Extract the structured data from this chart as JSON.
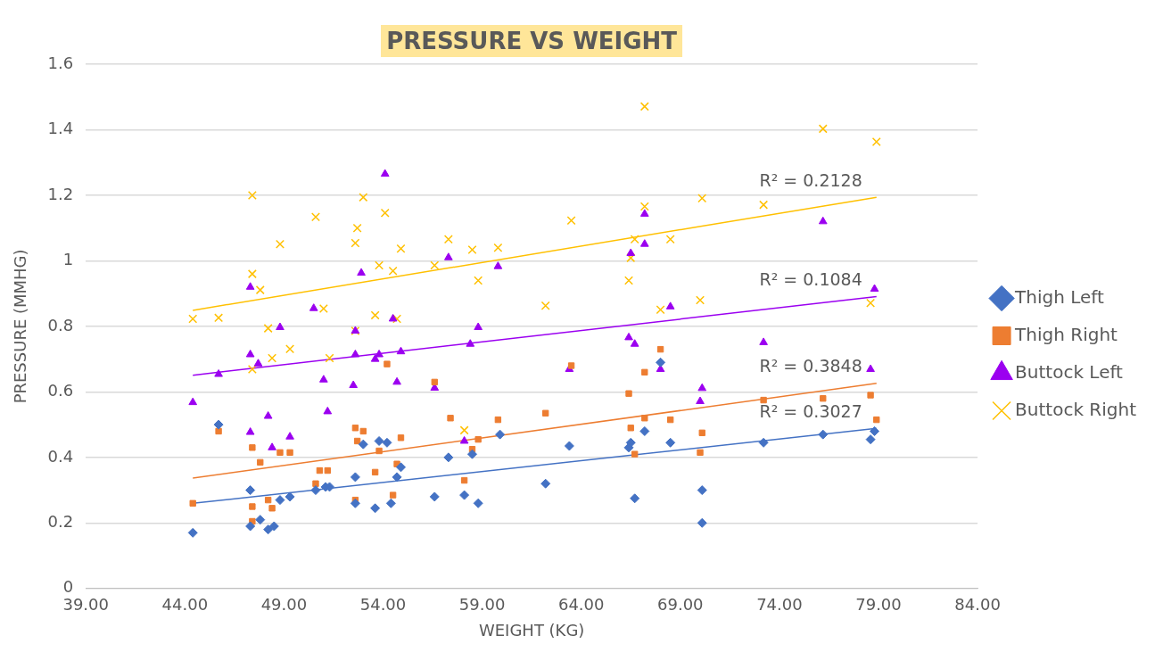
{
  "chart_data": {
    "type": "scatter",
    "title": "PRESSURE VS WEIGHT",
    "xlabel": "WEIGHT (KG)",
    "ylabel": "PRESSURE (MMHG)",
    "xlim": [
      39,
      84
    ],
    "xticks": [
      {
        "value": 39,
        "label": "39.00"
      },
      {
        "value": 44,
        "label": "44.00"
      },
      {
        "value": 49,
        "label": "49.00"
      },
      {
        "value": 54,
        "label": "54.00"
      },
      {
        "value": 59,
        "label": "59.00"
      },
      {
        "value": 64,
        "label": "64.00"
      },
      {
        "value": 69,
        "label": "69.00"
      },
      {
        "value": 74,
        "label": "74.00"
      },
      {
        "value": 79,
        "label": "79.00"
      },
      {
        "value": 84,
        "label": "84.00"
      }
    ],
    "ylim": [
      0,
      1.6
    ],
    "yticks": [
      0,
      0.2,
      0.4,
      0.6,
      0.8,
      1,
      1.2,
      1.4,
      1.6
    ],
    "grid": "y",
    "legend": "right",
    "series": [
      {
        "name": "Thigh Left",
        "color": "#4472c4",
        "marker": "diamond",
        "x": [
          44.4,
          45.7,
          47.3,
          47.3,
          47.8,
          48.2,
          48.5,
          48.8,
          49.3,
          50.6,
          51.1,
          51.3,
          52.6,
          52.6,
          53.0,
          53.6,
          53.8,
          54.2,
          54.4,
          54.7,
          54.9,
          56.6,
          57.3,
          58.1,
          58.5,
          58.8,
          59.9,
          62.2,
          63.4,
          66.4,
          66.5,
          66.7,
          67.2,
          68.0,
          68.5,
          70.1,
          70.1,
          73.2,
          76.2,
          78.6,
          78.8
        ],
        "values": [
          0.17,
          0.5,
          0.3,
          0.19,
          0.21,
          0.18,
          0.19,
          0.27,
          0.28,
          0.3,
          0.31,
          0.31,
          0.34,
          0.26,
          0.44,
          0.245,
          0.45,
          0.445,
          0.26,
          0.34,
          0.37,
          0.28,
          0.4,
          0.285,
          0.41,
          0.26,
          0.47,
          0.32,
          0.435,
          0.43,
          0.445,
          0.275,
          0.48,
          0.69,
          0.445,
          0.3,
          0.2,
          0.445,
          0.47,
          0.455,
          0.48
        ]
      },
      {
        "name": "Thigh Right",
        "color": "#ed7d31",
        "marker": "square",
        "x": [
          44.4,
          45.7,
          47.4,
          47.4,
          47.4,
          47.8,
          48.2,
          48.4,
          48.8,
          49.3,
          50.6,
          50.8,
          51.2,
          52.6,
          52.6,
          52.7,
          53.0,
          53.6,
          53.8,
          54.2,
          54.5,
          54.7,
          54.9,
          56.6,
          57.4,
          58.1,
          58.5,
          58.8,
          59.8,
          62.2,
          63.5,
          66.4,
          66.5,
          66.7,
          67.2,
          67.2,
          68.0,
          68.5,
          70.0,
          70.1,
          73.2,
          76.2,
          78.6,
          78.9
        ],
        "values": [
          0.26,
          0.48,
          0.43,
          0.25,
          0.205,
          0.385,
          0.27,
          0.245,
          0.415,
          0.415,
          0.32,
          0.36,
          0.36,
          0.27,
          0.49,
          0.45,
          0.48,
          0.355,
          0.42,
          0.685,
          0.285,
          0.38,
          0.46,
          0.63,
          0.52,
          0.33,
          0.425,
          0.455,
          0.515,
          0.535,
          0.68,
          0.595,
          0.49,
          0.41,
          0.52,
          0.66,
          0.73,
          0.515,
          0.415,
          0.475,
          0.575,
          0.58,
          0.59,
          0.515
        ]
      },
      {
        "name": "Buttock Left",
        "color": "#9b00f0",
        "marker": "triangle",
        "x": [
          44.4,
          45.7,
          47.3,
          47.3,
          47.3,
          47.7,
          48.2,
          48.4,
          48.8,
          49.3,
          50.5,
          51.0,
          51.2,
          52.5,
          52.6,
          52.6,
          52.9,
          53.6,
          53.8,
          54.1,
          54.5,
          54.7,
          54.9,
          56.6,
          57.3,
          58.1,
          58.4,
          58.8,
          59.8,
          63.4,
          66.4,
          66.5,
          66.7,
          67.2,
          67.2,
          68.0,
          68.5,
          70.0,
          70.1,
          73.2,
          76.2,
          78.6,
          78.8
        ],
        "values": [
          0.568,
          0.654,
          0.92,
          0.714,
          0.477,
          0.686,
          0.526,
          0.43,
          0.797,
          0.463,
          0.855,
          0.637,
          0.54,
          0.62,
          0.714,
          0.786,
          0.963,
          0.7,
          0.714,
          1.265,
          0.823,
          0.63,
          0.723,
          0.612,
          1.01,
          0.45,
          0.746,
          0.797,
          0.983,
          0.669,
          0.766,
          1.023,
          0.746,
          1.051,
          1.143,
          0.669,
          0.86,
          0.571,
          0.611,
          0.751,
          1.12,
          0.669,
          0.914
        ]
      },
      {
        "name": "Buttock Right",
        "color": "#ffc000",
        "marker": "cross",
        "x": [
          44.4,
          45.7,
          47.4,
          47.4,
          47.4,
          47.8,
          48.2,
          48.4,
          48.8,
          49.3,
          50.6,
          51.0,
          51.3,
          52.6,
          52.6,
          52.7,
          53.0,
          53.6,
          53.8,
          54.1,
          54.5,
          54.7,
          54.9,
          56.6,
          57.3,
          58.1,
          58.5,
          58.8,
          59.8,
          62.2,
          63.5,
          66.4,
          66.5,
          66.7,
          67.2,
          67.2,
          68.0,
          68.5,
          70.0,
          70.1,
          73.2,
          76.2,
          78.6,
          78.9
        ],
        "values": [
          0.823,
          0.826,
          1.2,
          0.96,
          0.669,
          0.911,
          0.794,
          0.703,
          1.051,
          0.731,
          1.134,
          0.854,
          0.703,
          0.786,
          1.054,
          1.1,
          1.194,
          0.834,
          0.986,
          1.146,
          0.969,
          0.823,
          1.037,
          0.986,
          1.066,
          0.483,
          1.034,
          0.94,
          1.04,
          0.863,
          1.123,
          0.94,
          1.009,
          1.066,
          1.471,
          1.166,
          0.851,
          1.066,
          0.88,
          1.191,
          1.171,
          1.403,
          0.871,
          1.363
        ]
      },
      {
        "type": "line",
        "color": "#4472c4",
        "marker": "none",
        "x": [
          44.4,
          78.9
        ],
        "values": [
          0.26,
          0.489
        ]
      },
      {
        "type": "line",
        "color": "#ed7d31",
        "marker": "none",
        "x": [
          44.4,
          78.9
        ],
        "values": [
          0.337,
          0.626
        ]
      },
      {
        "type": "line",
        "color": "#9b00f0",
        "marker": "none",
        "x": [
          44.4,
          78.9
        ],
        "values": [
          0.651,
          0.891
        ]
      },
      {
        "type": "line",
        "color": "#ffc000",
        "marker": "none",
        "x": [
          44.4,
          78.9
        ],
        "values": [
          0.849,
          1.194
        ]
      }
    ],
    "annotations": [
      "R² = 0.3027",
      "R² = 0.3848",
      "R² = 0.1084",
      "R² = 0.2128"
    ]
  }
}
